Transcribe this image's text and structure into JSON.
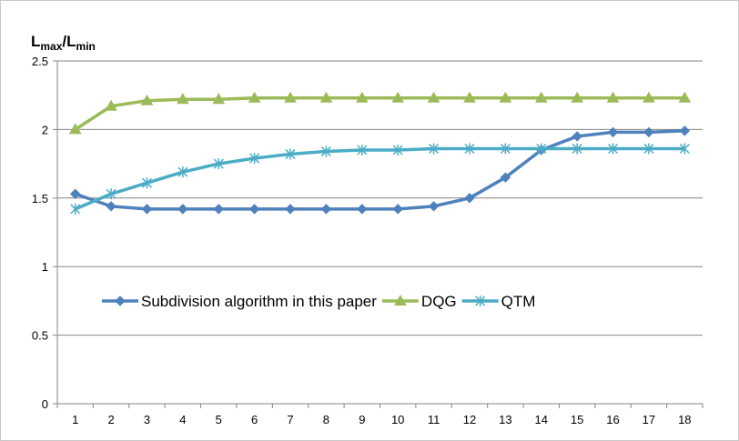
{
  "chart_data": {
    "type": "line",
    "title": "",
    "xlabel": "",
    "ylabel": {
      "base": "L",
      "sub1": "max",
      "sep": "/L",
      "sub2": "min"
    },
    "x": [
      1,
      2,
      3,
      4,
      5,
      6,
      7,
      8,
      9,
      10,
      11,
      12,
      13,
      14,
      15,
      16,
      17,
      18
    ],
    "ylim": [
      0,
      2.5
    ],
    "yticks": [
      "0",
      "0.5",
      "1",
      "1.5",
      "2",
      "2.5"
    ],
    "grid": "horizontal",
    "legend_position": "center",
    "series": [
      {
        "name": "Subdivision algorithm in this paper",
        "color": "#4f81bd",
        "marker": "diamond",
        "values": [
          1.53,
          1.44,
          1.42,
          1.42,
          1.42,
          1.42,
          1.42,
          1.42,
          1.42,
          1.42,
          1.44,
          1.5,
          1.65,
          1.85,
          1.95,
          1.98,
          1.98,
          1.99
        ]
      },
      {
        "name": "DQG",
        "color": "#9bbb59",
        "marker": "triangle",
        "values": [
          2.0,
          2.17,
          2.21,
          2.22,
          2.22,
          2.23,
          2.23,
          2.23,
          2.23,
          2.23,
          2.23,
          2.23,
          2.23,
          2.23,
          2.23,
          2.23,
          2.23,
          2.23
        ]
      },
      {
        "name": "QTM",
        "color": "#4bacc6",
        "marker": "asterisk",
        "values": [
          1.42,
          1.53,
          1.61,
          1.69,
          1.75,
          1.79,
          1.82,
          1.84,
          1.85,
          1.85,
          1.86,
          1.86,
          1.86,
          1.86,
          1.86,
          1.86,
          1.86,
          1.86
        ]
      }
    ]
  }
}
